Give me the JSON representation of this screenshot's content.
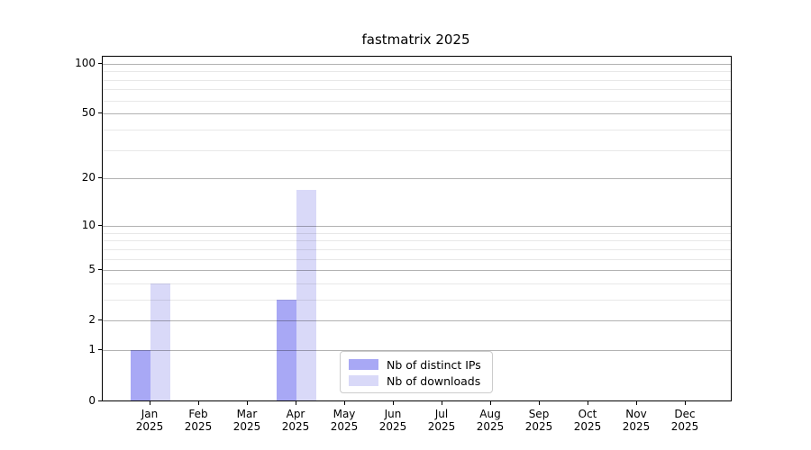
{
  "chart_data": {
    "type": "bar",
    "title": "fastmatrix 2025",
    "categories": [
      "Jan",
      "Feb",
      "Mar",
      "Apr",
      "May",
      "Jun",
      "Jul",
      "Aug",
      "Sep",
      "Oct",
      "Nov",
      "Dec"
    ],
    "year_label": "2025",
    "series": [
      {
        "name": "Nb of distinct IPs",
        "color": "#a8a8f5",
        "values": [
          1,
          0,
          0,
          3,
          0,
          0,
          0,
          0,
          0,
          0,
          0,
          0
        ]
      },
      {
        "name": "Nb of downloads",
        "color": "#d9d9f8",
        "values": [
          4,
          0,
          0,
          17,
          0,
          0,
          0,
          0,
          0,
          0,
          0,
          0
        ]
      }
    ],
    "scale": "log1p",
    "y_ticks": [
      0,
      1,
      2,
      5,
      10,
      20,
      50,
      100
    ],
    "y_tick_labels": [
      "0",
      "1",
      "2",
      "5",
      "10",
      "20",
      "50",
      "100"
    ],
    "y_minor_ticks": [
      3,
      4,
      6,
      7,
      8,
      9,
      30,
      40,
      60,
      70,
      80,
      90
    ],
    "ylim": [
      0,
      110
    ],
    "grid": true,
    "legend_position": "lower center"
  }
}
